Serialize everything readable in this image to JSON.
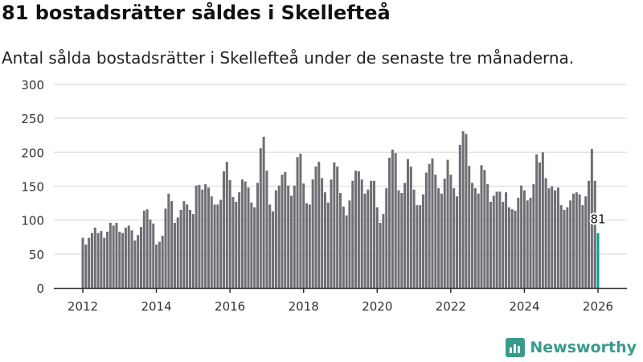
{
  "title": "81 bostadsrätter såldes i Skellefteå",
  "subtitle": "Antal sålda bostadsrätter i Skellefteå under de senaste tre månaderna.",
  "logo": {
    "text": "Newsworthy",
    "color": "#3a9a8c"
  },
  "colors": {
    "bar": "#6f6e74",
    "highlight": "#00a398"
  },
  "chart_data": {
    "type": "bar",
    "title": "81 bostadsrätter såldes i Skellefteå",
    "xlabel": "",
    "ylabel": "",
    "start": "2012-01",
    "frequency": "monthly",
    "ylim": [
      0,
      300
    ],
    "yticks": [
      "0",
      "50",
      "100",
      "150",
      "200",
      "250",
      "300"
    ],
    "xticks": [
      "2012",
      "2014",
      "2016",
      "2018",
      "2020",
      "2022",
      "2024",
      "2026"
    ],
    "grid": true,
    "highlight_label": "81",
    "values": [
      74,
      64,
      74,
      81,
      89,
      81,
      84,
      74,
      83,
      96,
      92,
      96,
      83,
      81,
      89,
      92,
      85,
      70,
      78,
      90,
      114,
      116,
      101,
      95,
      64,
      68,
      77,
      117,
      139,
      128,
      96,
      104,
      115,
      128,
      123,
      115,
      109,
      151,
      152,
      145,
      153,
      148,
      135,
      123,
      123,
      130,
      172,
      186,
      159,
      134,
      127,
      141,
      160,
      157,
      148,
      126,
      119,
      155,
      206,
      223,
      173,
      123,
      113,
      144,
      151,
      167,
      171,
      151,
      136,
      151,
      193,
      198,
      154,
      125,
      123,
      160,
      179,
      186,
      162,
      141,
      126,
      160,
      185,
      179,
      140,
      120,
      107,
      129,
      158,
      173,
      172,
      160,
      139,
      145,
      158,
      158,
      119,
      96,
      109,
      147,
      192,
      204,
      199,
      144,
      140,
      155,
      190,
      179,
      145,
      122,
      122,
      138,
      170,
      183,
      191,
      167,
      147,
      139,
      161,
      189,
      167,
      147,
      135,
      211,
      231,
      227,
      180,
      155,
      147,
      139,
      181,
      174,
      153,
      127,
      136,
      142,
      142,
      127,
      141,
      119,
      116,
      114,
      133,
      151,
      144,
      129,
      133,
      153,
      197,
      185,
      200,
      162,
      147,
      150,
      144,
      148,
      122,
      115,
      119,
      129,
      139,
      141,
      138,
      122,
      135,
      158,
      205,
      158,
      81
    ]
  }
}
